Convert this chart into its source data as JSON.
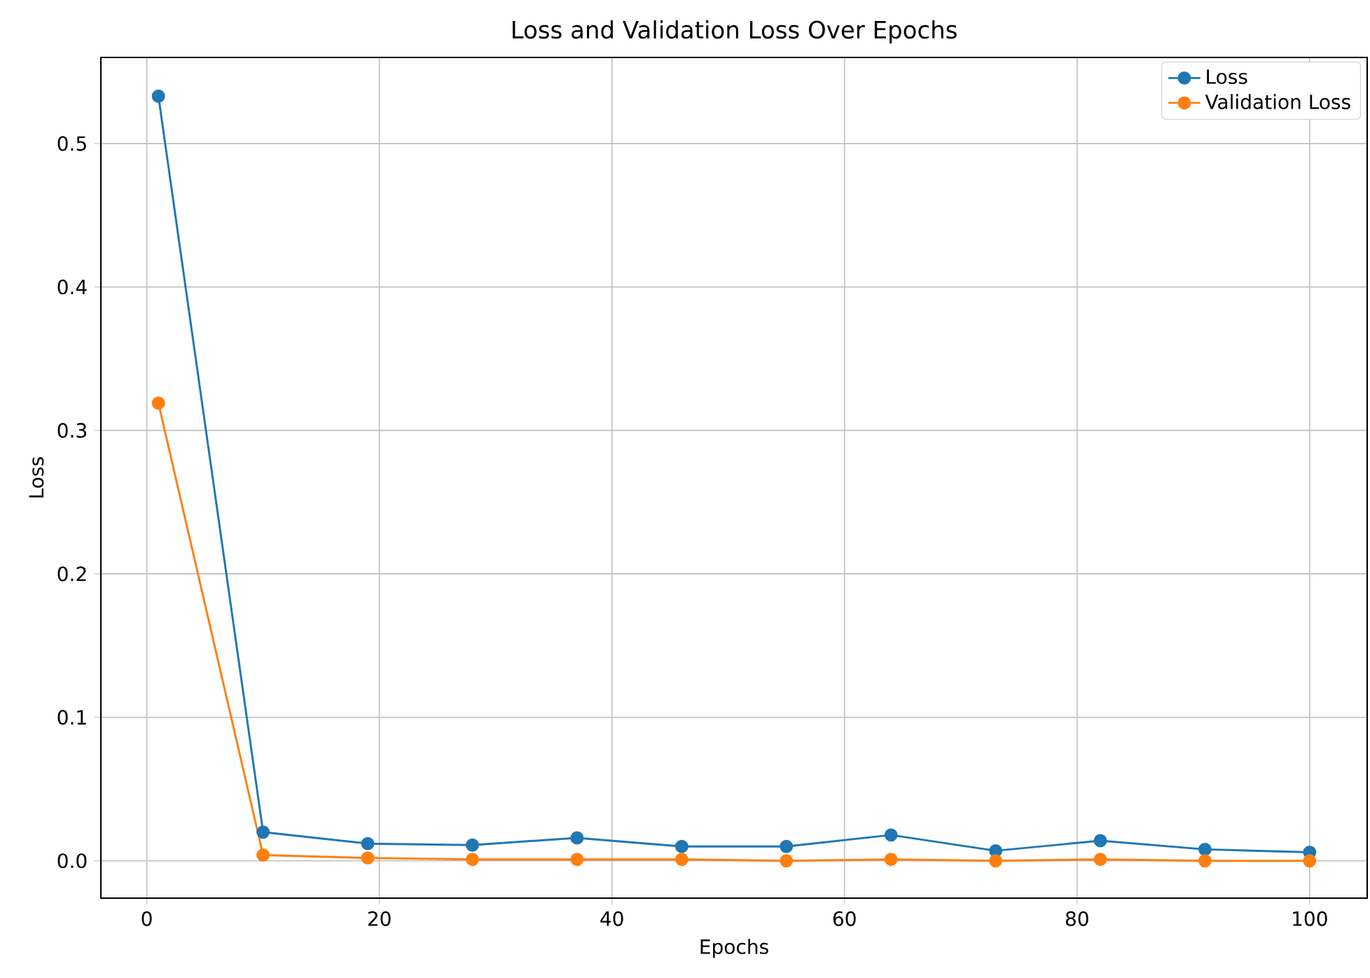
{
  "chart_data": {
    "type": "line",
    "title": "Loss and Validation Loss Over Epochs",
    "xlabel": "Epochs",
    "ylabel": "Loss",
    "x": [
      1,
      10,
      19,
      28,
      37,
      46,
      55,
      64,
      73,
      82,
      91,
      100
    ],
    "series": [
      {
        "name": "Loss",
        "color": "#1f77b4",
        "values": [
          0.533,
          0.02,
          0.012,
          0.011,
          0.016,
          0.01,
          0.01,
          0.018,
          0.007,
          0.014,
          0.008,
          0.006
        ]
      },
      {
        "name": "Validation Loss",
        "color": "#ff7f0e",
        "values": [
          0.319,
          0.004,
          0.002,
          0.001,
          0.001,
          0.001,
          0.0,
          0.001,
          0.0,
          0.001,
          0.0,
          0.0
        ]
      }
    ],
    "xlim": [
      -3.95,
      104.95
    ],
    "ylim": [
      -0.026,
      0.56
    ],
    "xticks": [
      0,
      20,
      40,
      60,
      80,
      100
    ],
    "yticks": [
      {
        "value": 0,
        "label": "0.0"
      },
      {
        "value": 0.1,
        "label": "0.1"
      },
      {
        "value": 0.2,
        "label": "0.2"
      },
      {
        "value": 0.3,
        "label": "0.3"
      },
      {
        "value": 0.4,
        "label": "0.4"
      },
      {
        "value": 0.5,
        "label": "0.5"
      }
    ],
    "grid": true,
    "legend": "top right",
    "marker": "circle",
    "line_style": "solid"
  }
}
